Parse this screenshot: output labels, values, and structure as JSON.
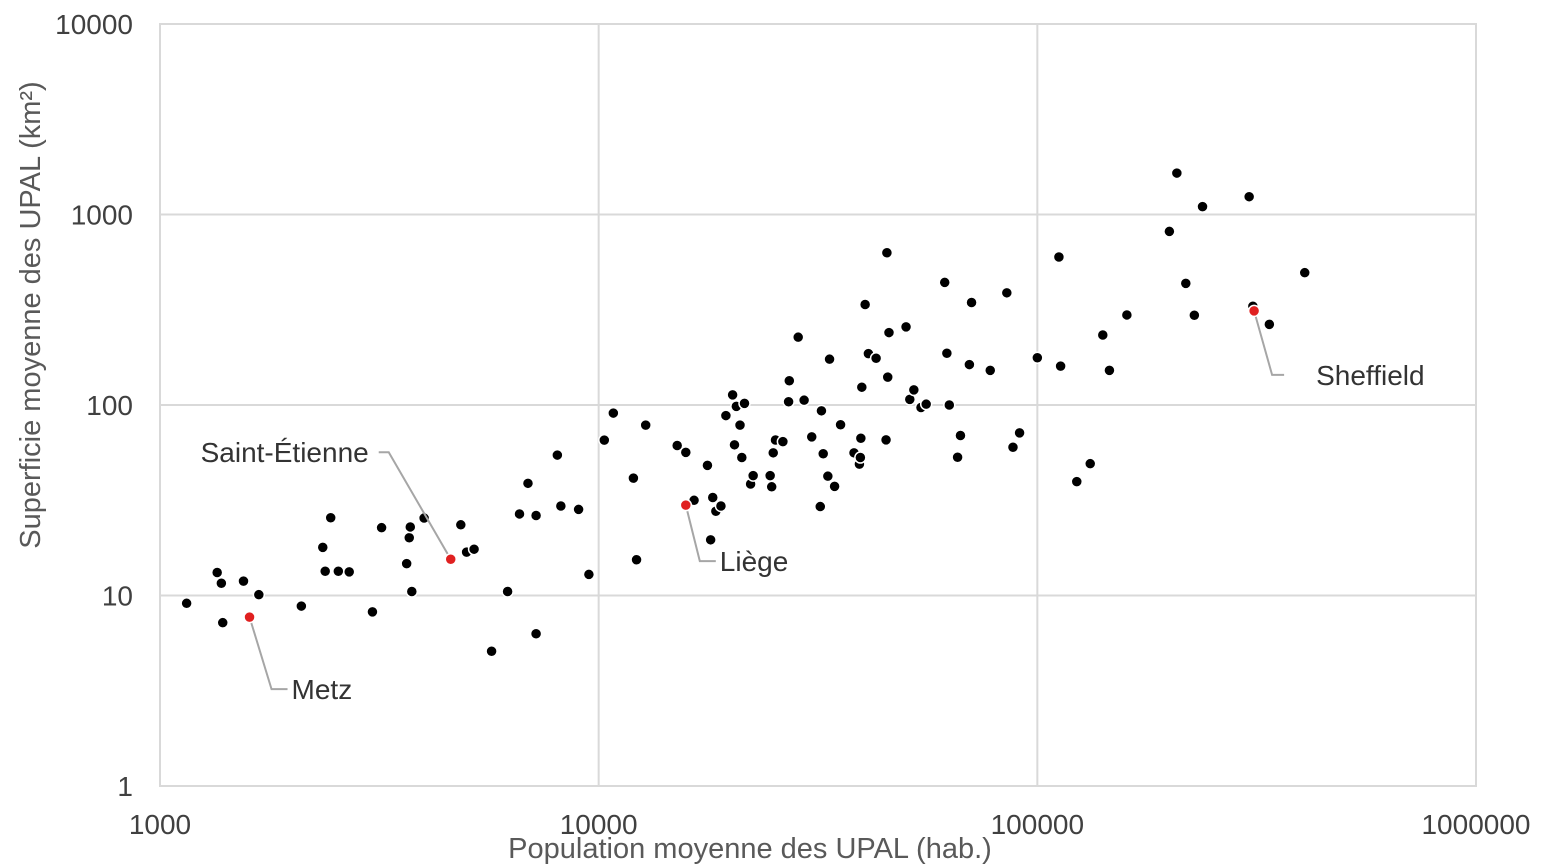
{
  "chart_data": {
    "type": "scatter",
    "title": "",
    "xlabel": "Population moyenne des UPAL (hab.)",
    "ylabel": "Superficie moyenne des UPAL (km²)",
    "xscale": "log",
    "yscale": "log",
    "xlim": [
      1000,
      1000000
    ],
    "ylim": [
      1,
      10000
    ],
    "x_ticks": [
      "1000",
      "10000",
      "100000",
      "1000000"
    ],
    "y_ticks": [
      "1",
      "10",
      "100",
      "1000",
      "10000"
    ],
    "grid": true,
    "legend": "none",
    "colors": {
      "point": "#000000",
      "highlight": "#e02020",
      "grid": "#d9d9d9",
      "leader": "#a6a6a6"
    },
    "series": [
      {
        "points": [
          [
            1150,
            9.1
          ],
          [
            1350,
            13.2
          ],
          [
            1380,
            11.6
          ],
          [
            1390,
            7.2
          ],
          [
            1550,
            11.9
          ],
          [
            1680,
            10.1
          ],
          [
            2100,
            8.8
          ],
          [
            2350,
            17.9
          ],
          [
            2380,
            13.4
          ],
          [
            2450,
            25.6
          ],
          [
            2550,
            13.4
          ],
          [
            2700,
            13.3
          ],
          [
            3050,
            8.2
          ],
          [
            3200,
            22.7
          ],
          [
            3650,
            14.7
          ],
          [
            3700,
            20.1
          ],
          [
            3720,
            22.9
          ],
          [
            3750,
            10.5
          ],
          [
            4000,
            25.5
          ],
          [
            4850,
            23.5
          ],
          [
            5000,
            16.9
          ],
          [
            5200,
            17.5
          ],
          [
            5700,
            5.1
          ],
          [
            6200,
            10.5
          ],
          [
            6600,
            26.8
          ],
          [
            6900,
            38.8
          ],
          [
            7200,
            26.3
          ],
          [
            7200,
            6.3
          ],
          [
            8050,
            54.6
          ],
          [
            8200,
            29.5
          ],
          [
            9000,
            28.3
          ],
          [
            9500,
            12.9
          ],
          [
            10300,
            65.4
          ],
          [
            10800,
            90.7
          ],
          [
            12000,
            41.3
          ],
          [
            12200,
            15.4
          ],
          [
            12800,
            78.4
          ],
          [
            15100,
            61.3
          ],
          [
            15800,
            56.4
          ],
          [
            16500,
            31.6
          ],
          [
            17700,
            48.2
          ],
          [
            18000,
            19.6
          ],
          [
            18200,
            32.7
          ],
          [
            18500,
            27.7
          ],
          [
            19000,
            29.5
          ],
          [
            19500,
            88.0
          ],
          [
            20200,
            113.0
          ],
          [
            20400,
            61.8
          ],
          [
            20600,
            98.4
          ],
          [
            21000,
            78.4
          ],
          [
            21200,
            53.0
          ],
          [
            21500,
            102.0
          ],
          [
            22200,
            38.5
          ],
          [
            22500,
            42.6
          ],
          [
            24600,
            42.6
          ],
          [
            24800,
            37.2
          ],
          [
            25000,
            56.1
          ],
          [
            25300,
            65.5
          ],
          [
            26300,
            64.2
          ],
          [
            27100,
            104.0
          ],
          [
            27200,
            134.0
          ],
          [
            28500,
            227.0
          ],
          [
            29400,
            106.0
          ],
          [
            30600,
            68.0
          ],
          [
            32000,
            29.3
          ],
          [
            32200,
            93.2
          ],
          [
            32500,
            55.5
          ],
          [
            33300,
            42.3
          ],
          [
            33600,
            174.0
          ],
          [
            34500,
            37.4
          ],
          [
            35600,
            78.8
          ],
          [
            38200,
            56.1
          ],
          [
            39300,
            48.9
          ],
          [
            39500,
            53.0
          ],
          [
            39600,
            66.9
          ],
          [
            39800,
            124.0
          ],
          [
            40500,
            337.0
          ],
          [
            41200,
            186.0
          ],
          [
            42900,
            176.0
          ],
          [
            45200,
            65.6
          ],
          [
            45400,
            630.0
          ],
          [
            45600,
            140.0
          ],
          [
            45900,
            240.0
          ],
          [
            50200,
            257.0
          ],
          [
            51200,
            107.0
          ],
          [
            52300,
            120.0
          ],
          [
            54300,
            97.0
          ],
          [
            55800,
            101.0
          ],
          [
            61500,
            440.0
          ],
          [
            62200,
            187.0
          ],
          [
            63000,
            100.0
          ],
          [
            65800,
            53.2
          ],
          [
            66800,
            69.2
          ],
          [
            70000,
            163.0
          ],
          [
            70800,
            345.0
          ],
          [
            78100,
            152.0
          ],
          [
            85200,
            388.0
          ],
          [
            88000,
            60.0
          ],
          [
            91100,
            71.4
          ],
          [
            100000,
            177.0
          ],
          [
            112000,
            598.0
          ],
          [
            113000,
            160.0
          ],
          [
            123000,
            39.6
          ],
          [
            132000,
            49.2
          ],
          [
            141000,
            233.0
          ],
          [
            146000,
            152.0
          ],
          [
            160000,
            297.0
          ],
          [
            200000,
            815.0
          ],
          [
            208000,
            1650.0
          ],
          [
            218000,
            435.0
          ],
          [
            228000,
            296.0
          ],
          [
            238000,
            1100.0
          ],
          [
            304000,
            1240.0
          ],
          [
            310000,
            330.0
          ],
          [
            338000,
            265.0
          ],
          [
            407000,
            495.0
          ]
        ]
      }
    ],
    "highlighted": [
      {
        "label": "Metz",
        "x": 1600,
        "y": 7.7
      },
      {
        "label": "Saint-Étienne",
        "x": 4600,
        "y": 15.5
      },
      {
        "label": "Liège",
        "x": 15800,
        "y": 29.8
      },
      {
        "label": "Sheffield",
        "x": 312000,
        "y": 312.0
      }
    ]
  }
}
